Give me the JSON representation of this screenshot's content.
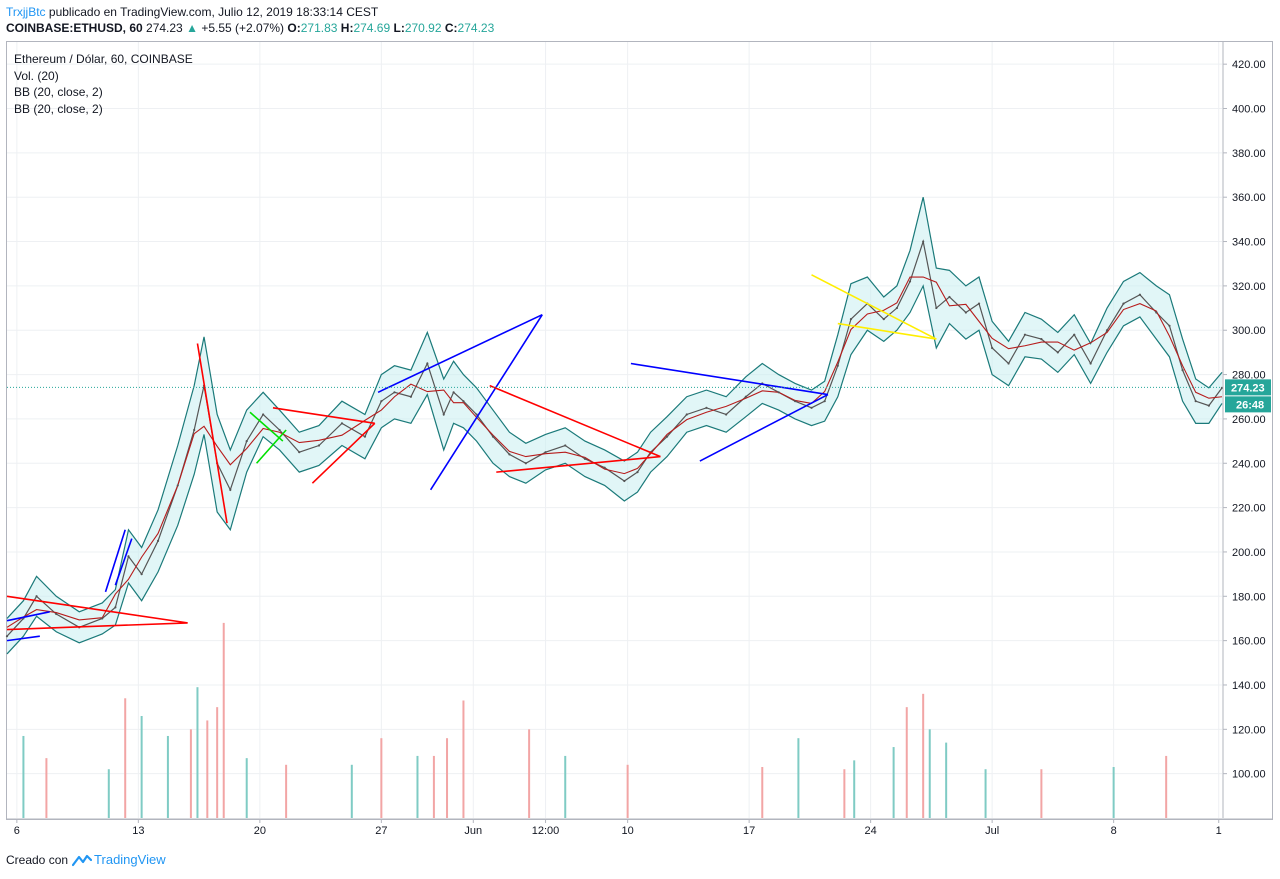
{
  "header": {
    "author": "TrxjjBtc",
    "published_text": "publicado en TradingView.com, Julio 12, 2019 18:33:14 CEST",
    "symbol_line_prefix": "COINBASE:ETHUSD, 60",
    "last": "274.23",
    "change_arrow": "▲",
    "change": "+5.55 (+2.07%)",
    "ohlc": [
      {
        "label": "O:",
        "value": "271.83"
      },
      {
        "label": "H:",
        "value": "274.69"
      },
      {
        "label": "L:",
        "value": "270.92"
      },
      {
        "label": "C:",
        "value": "274.23"
      }
    ]
  },
  "legend": {
    "title": "Ethereum / Dólar, 60, COINBASE",
    "vol": "Vol. (20)",
    "bb1": "BB (20, close, 2)",
    "bb2": "BB (20, close, 2)"
  },
  "footer": {
    "created_with": "Creado con",
    "brand": "TradingView"
  },
  "chart_data": {
    "type": "line",
    "title": "Ethereum / Dólar, 60, COINBASE",
    "ylim": [
      80,
      430
    ],
    "y_ticks": [
      100,
      120,
      140,
      160,
      180,
      200,
      220,
      240,
      260,
      280,
      300,
      320,
      340,
      360,
      380,
      400,
      420
    ],
    "y_tick_labels": [
      "100.00",
      "120.00",
      "140.00",
      "160.00",
      "180.00",
      "200.00",
      "220.00",
      "240.00",
      "260.00",
      "280.00",
      "300.00",
      "320.00",
      "340.00",
      "360.00",
      "380.00",
      "400.00",
      "420.00"
    ],
    "x_range_days": [
      0,
      37
    ],
    "x_ticks": [
      {
        "day": 0.3,
        "label": "6"
      },
      {
        "day": 4.0,
        "label": "13"
      },
      {
        "day": 7.7,
        "label": "20"
      },
      {
        "day": 11.4,
        "label": "27"
      },
      {
        "day": 14.2,
        "label": "Jun"
      },
      {
        "day": 16.4,
        "label": "12:00"
      },
      {
        "day": 18.9,
        "label": "10"
      },
      {
        "day": 22.6,
        "label": "17"
      },
      {
        "day": 26.3,
        "label": "24"
      },
      {
        "day": 30.0,
        "label": "Jul"
      },
      {
        "day": 33.7,
        "label": "8"
      },
      {
        "day": 36.9,
        "label": "1"
      }
    ],
    "grid": true,
    "price_series": {
      "name": "ETHUSD",
      "days": [
        0,
        0.5,
        0.9,
        1.5,
        2.2,
        2.9,
        3.3,
        3.7,
        4.1,
        4.6,
        5.2,
        5.7,
        6.0,
        6.4,
        6.8,
        7.3,
        7.8,
        8.3,
        8.9,
        9.5,
        10.2,
        10.9,
        11.4,
        11.8,
        12.3,
        12.8,
        13.3,
        13.6,
        13.9,
        14.3,
        14.8,
        15.3,
        15.8,
        16.4,
        17.0,
        17.6,
        18.2,
        18.8,
        19.2,
        19.6,
        20.1,
        20.7,
        21.3,
        21.9,
        22.5,
        23.0,
        23.5,
        24.0,
        24.5,
        24.9,
        25.3,
        25.7,
        26.2,
        26.7,
        27.1,
        27.5,
        27.9,
        28.3,
        28.7,
        29.2,
        29.6,
        30.0,
        30.5,
        31.0,
        31.5,
        32.0,
        32.5,
        33.0,
        33.5,
        34.0,
        34.5,
        35.0,
        35.4,
        35.8,
        36.2,
        36.6,
        37.0
      ],
      "values": [
        162,
        170,
        180,
        172,
        166,
        170,
        175,
        198,
        190,
        205,
        230,
        255,
        275,
        240,
        228,
        250,
        262,
        255,
        245,
        248,
        258,
        252,
        268,
        272,
        270,
        285,
        262,
        272,
        268,
        262,
        252,
        244,
        240,
        245,
        248,
        242,
        238,
        232,
        236,
        245,
        252,
        262,
        265,
        262,
        270,
        276,
        272,
        268,
        265,
        268,
        284,
        305,
        312,
        305,
        310,
        322,
        340,
        310,
        315,
        308,
        312,
        292,
        285,
        298,
        296,
        290,
        298,
        285,
        300,
        312,
        316,
        308,
        302,
        282,
        268,
        266,
        274
      ]
    },
    "bb_width": [
      8,
      8,
      9,
      8,
      7,
      7,
      8,
      12,
      12,
      14,
      18,
      20,
      22,
      22,
      18,
      14,
      10,
      9,
      9,
      9,
      10,
      10,
      12,
      12,
      12,
      14,
      16,
      14,
      12,
      12,
      12,
      10,
      9,
      8,
      8,
      8,
      8,
      9,
      9,
      9,
      9,
      8,
      8,
      8,
      9,
      9,
      8,
      8,
      8,
      9,
      14,
      16,
      12,
      10,
      10,
      14,
      20,
      18,
      12,
      12,
      12,
      12,
      10,
      10,
      9,
      9,
      9,
      9,
      10,
      10,
      10,
      12,
      14,
      14,
      10,
      8,
      7
    ],
    "volume": {
      "days": [
        0.5,
        1.2,
        3.1,
        3.6,
        4.1,
        4.9,
        5.6,
        5.8,
        6.1,
        6.4,
        6.6,
        7.3,
        8.5,
        10.5,
        11.4,
        12.5,
        13.0,
        13.4,
        13.9,
        15.9,
        17.0,
        18.9,
        23.0,
        24.1,
        25.5,
        25.8,
        27.0,
        27.4,
        27.9,
        28.1,
        28.6,
        29.8,
        31.5,
        33.7,
        35.3
      ],
      "values": [
        117,
        107,
        102,
        134,
        126,
        117,
        120,
        139,
        124,
        130,
        168,
        107,
        104,
        104,
        116,
        108,
        108,
        116,
        133,
        120,
        108,
        104,
        103,
        116,
        102,
        106,
        112,
        130,
        136,
        120,
        114,
        102,
        102,
        103,
        108
      ],
      "up": [
        true,
        false,
        true,
        false,
        true,
        true,
        false,
        true,
        false,
        false,
        false,
        true,
        false,
        true,
        false,
        true,
        false,
        false,
        false,
        false,
        true,
        false,
        false,
        true,
        false,
        true,
        true,
        false,
        false,
        true,
        true,
        true,
        false,
        true,
        false
      ]
    },
    "trendlines": [
      {
        "color": "#ff0000",
        "points": [
          [
            0,
            180
          ],
          [
            5.5,
            168
          ]
        ]
      },
      {
        "color": "#ff0000",
        "points": [
          [
            0,
            165
          ],
          [
            5.5,
            168
          ]
        ]
      },
      {
        "color": "#0000ff",
        "points": [
          [
            0,
            169
          ],
          [
            1.3,
            173
          ]
        ]
      },
      {
        "color": "#0000ff",
        "points": [
          [
            0,
            160
          ],
          [
            1.0,
            162
          ]
        ]
      },
      {
        "color": "#0000ff",
        "points": [
          [
            3.0,
            182
          ],
          [
            3.6,
            210
          ]
        ]
      },
      {
        "color": "#0000ff",
        "points": [
          [
            3.3,
            185
          ],
          [
            3.8,
            206
          ]
        ]
      },
      {
        "color": "#ff0000",
        "points": [
          [
            5.8,
            294
          ],
          [
            6.7,
            213
          ]
        ]
      },
      {
        "color": "#00e000",
        "points": [
          [
            7.4,
            263
          ],
          [
            8.4,
            250
          ]
        ]
      },
      {
        "color": "#00e000",
        "points": [
          [
            7.6,
            240
          ],
          [
            8.5,
            255
          ]
        ]
      },
      {
        "color": "#ff0000",
        "points": [
          [
            8.1,
            265
          ],
          [
            11.2,
            258
          ]
        ]
      },
      {
        "color": "#ff0000",
        "points": [
          [
            9.3,
            231
          ],
          [
            11.2,
            258
          ]
        ]
      },
      {
        "color": "#0000ff",
        "points": [
          [
            11.3,
            272
          ],
          [
            16.3,
            307
          ]
        ]
      },
      {
        "color": "#0000ff",
        "points": [
          [
            12.9,
            228
          ],
          [
            16.3,
            307
          ]
        ]
      },
      {
        "color": "#ff0000",
        "points": [
          [
            14.7,
            275
          ],
          [
            19.9,
            243
          ]
        ]
      },
      {
        "color": "#ff0000",
        "points": [
          [
            14.9,
            236
          ],
          [
            19.9,
            243
          ]
        ]
      },
      {
        "color": "#0000ff",
        "points": [
          [
            19.0,
            285
          ],
          [
            25.0,
            271
          ]
        ]
      },
      {
        "color": "#0000ff",
        "points": [
          [
            21.1,
            241
          ],
          [
            25.0,
            271
          ]
        ]
      },
      {
        "color": "#ffee00",
        "points": [
          [
            24.5,
            325
          ],
          [
            28.3,
            296
          ]
        ]
      },
      {
        "color": "#ffee00",
        "points": [
          [
            25.3,
            303
          ],
          [
            28.3,
            296
          ]
        ]
      }
    ],
    "current_price": 274.23,
    "price_label": "274.23",
    "countdown_label": "26:48",
    "colors": {
      "price": "#555555",
      "ma": "#b71c1c",
      "bb": "#1b7a7a",
      "bb_fill": "#c8eef0",
      "vol_up": "#7fcbc4",
      "vol_down": "#f2a5a5",
      "last_price": "#26a69a"
    }
  }
}
